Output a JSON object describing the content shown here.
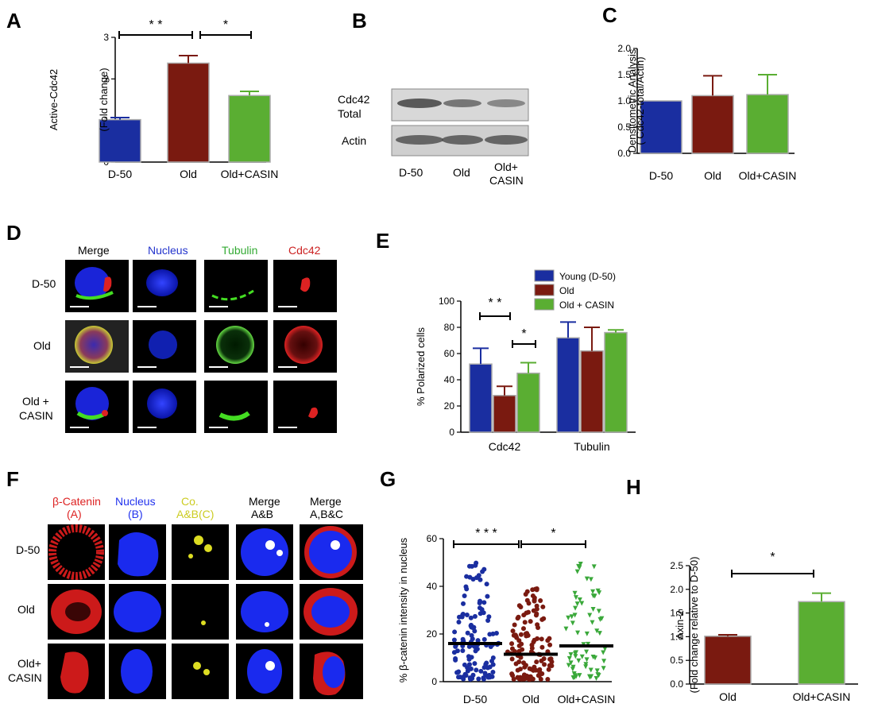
{
  "panels": {
    "A": {
      "label": "A"
    },
    "B": {
      "label": "B"
    },
    "C": {
      "label": "C"
    },
    "D": {
      "label": "D"
    },
    "E": {
      "label": "E"
    },
    "F": {
      "label": "F"
    },
    "G": {
      "label": "G"
    },
    "H": {
      "label": "H"
    }
  },
  "blot": {
    "rows": [
      "Cdc42 Total",
      "Actin"
    ],
    "row1_line1": "Cdc42",
    "row1_line2": "Total",
    "row2": "Actin",
    "lanes": [
      "D-50",
      "Old",
      "Old+ CASIN"
    ],
    "lane1": "D-50",
    "lane2": "Old",
    "lane3_line1": "Old+",
    "lane3_line2": "CASIN"
  },
  "micrographs_D": {
    "headers": [
      "Merge",
      "Nucleus",
      "Tubulin",
      "Cdc42"
    ],
    "header_colors": [
      "#000000",
      "#2233cc",
      "#33aa33",
      "#cc2222"
    ],
    "rows": [
      "D-50",
      "Old",
      "Old + CASIN"
    ],
    "row3_line1": "Old +",
    "row3_line2": "CASIN"
  },
  "micrographs_F": {
    "headers": [
      "β-Catenin (A)",
      "Nucleus (B)",
      "Co. A&B(C)",
      "Merge A&B",
      "Merge A,B&C"
    ],
    "h1a": "β-Catenin",
    "h1b": "(A)",
    "h2a": "Nucleus",
    "h2b": "(B)",
    "h3a": "Co.",
    "h3b": "A&B(C)",
    "h4a": "Merge",
    "h4b": "A&B",
    "h5a": "Merge",
    "h5b": "A,B&C",
    "header_colors": [
      "#dd2222",
      "#2233ee",
      "#dddd22",
      "#000000",
      "#000000"
    ],
    "rows": [
      "D-50",
      "Old",
      "Old+ CASIN"
    ],
    "row3_line1": "Old+",
    "row3_line2": "CASIN"
  },
  "chart_data": [
    {
      "panel": "A",
      "type": "bar",
      "categories": [
        "D-50",
        "Old",
        "Old+CASIN"
      ],
      "values": [
        1.02,
        2.38,
        1.6
      ],
      "errors": [
        0.05,
        0.18,
        0.1
      ],
      "colors": [
        "#1a2ea0",
        "#7a1a10",
        "#5aae32"
      ],
      "ylabel": "Active-Cdc42 (Fold change)",
      "ylabel_line1": "Active-Cdc42",
      "ylabel_line2": "(Fold change)",
      "ylim": [
        0,
        3
      ],
      "yticks": [
        "0",
        "1",
        "2",
        "3"
      ],
      "significance": [
        {
          "from": "D-50",
          "to": "Old",
          "label": "* *"
        },
        {
          "from": "Old",
          "to": "Old+CASIN",
          "label": "*"
        }
      ]
    },
    {
      "panel": "C",
      "type": "bar",
      "categories": [
        "D-50",
        "Old",
        "Old+CASIN"
      ],
      "values": [
        1.0,
        1.1,
        1.12
      ],
      "errors": [
        0.0,
        0.38,
        0.38
      ],
      "colors": [
        "#1a2ea0",
        "#7a1a10",
        "#5aae32"
      ],
      "ylabel": "Densitometric Analysis ( Cdc42-total/Actin)",
      "ylabel_line1": "Densitometric Analysis",
      "ylabel_line2": "( Cdc42-total/Actin)",
      "ylim": [
        0,
        2
      ],
      "yticks": [
        "0.0",
        "0.5",
        "1.0",
        "1.5",
        "2.0"
      ]
    },
    {
      "panel": "E",
      "type": "bar",
      "categories": [
        "Cdc42",
        "Tubulin"
      ],
      "series": [
        {
          "name": "Young (D-50)",
          "color": "#1a2ea0",
          "values": [
            52,
            72
          ],
          "errors": [
            12,
            12
          ]
        },
        {
          "name": "Old",
          "color": "#7a1a10",
          "values": [
            28,
            62
          ],
          "errors": [
            7,
            18
          ]
        },
        {
          "name": "Old + CASIN",
          "color": "#5aae32",
          "values": [
            45,
            76
          ],
          "errors": [
            8,
            2
          ]
        }
      ],
      "ylabel": "% Polarized cells",
      "ylim": [
        0,
        100
      ],
      "yticks": [
        "0",
        "20",
        "40",
        "60",
        "80",
        "100"
      ],
      "legend": "top",
      "significance": [
        {
          "label": "* *"
        },
        {
          "label": "*"
        }
      ]
    },
    {
      "panel": "G",
      "type": "scatter",
      "categories": [
        "D-50",
        "Old",
        "Old+CASIN"
      ],
      "medians": [
        16,
        11.5,
        15
      ],
      "ylabel": "% β-catenin intensity in nucleus",
      "ylim": [
        0,
        60
      ],
      "yticks": [
        "0",
        "20",
        "40",
        "60"
      ],
      "series": [
        {
          "name": "D-50",
          "color": "#1a2ea0",
          "marker": "circle",
          "count": 120,
          "min": 1,
          "max": 52
        },
        {
          "name": "Old",
          "color": "#7a1a10",
          "marker": "circle",
          "count": 130,
          "min": 1,
          "max": 41
        },
        {
          "name": "Old+CASIN",
          "color": "#3aa83a",
          "marker": "triangle-down",
          "count": 70,
          "min": 1,
          "max": 50
        }
      ],
      "significance": [
        {
          "label": "* * *"
        },
        {
          "label": "*"
        }
      ]
    },
    {
      "panel": "H",
      "type": "bar",
      "categories": [
        "Old",
        "Old+CASIN"
      ],
      "values": [
        1.01,
        1.74
      ],
      "errors": [
        0.03,
        0.18
      ],
      "colors": [
        "#7a1a10",
        "#5aae32"
      ],
      "ylabel": "Axin-2 (Fold change relative to D-50)",
      "ylabel_line1": "Axin-2",
      "ylabel_line2": "(Fold change relative to D-50)",
      "ylim": [
        0,
        2.5
      ],
      "yticks": [
        "0.0",
        "0.5",
        "1.0",
        "1.5",
        "2.0",
        "2.5"
      ],
      "significance": [
        {
          "label": "*"
        }
      ]
    }
  ]
}
